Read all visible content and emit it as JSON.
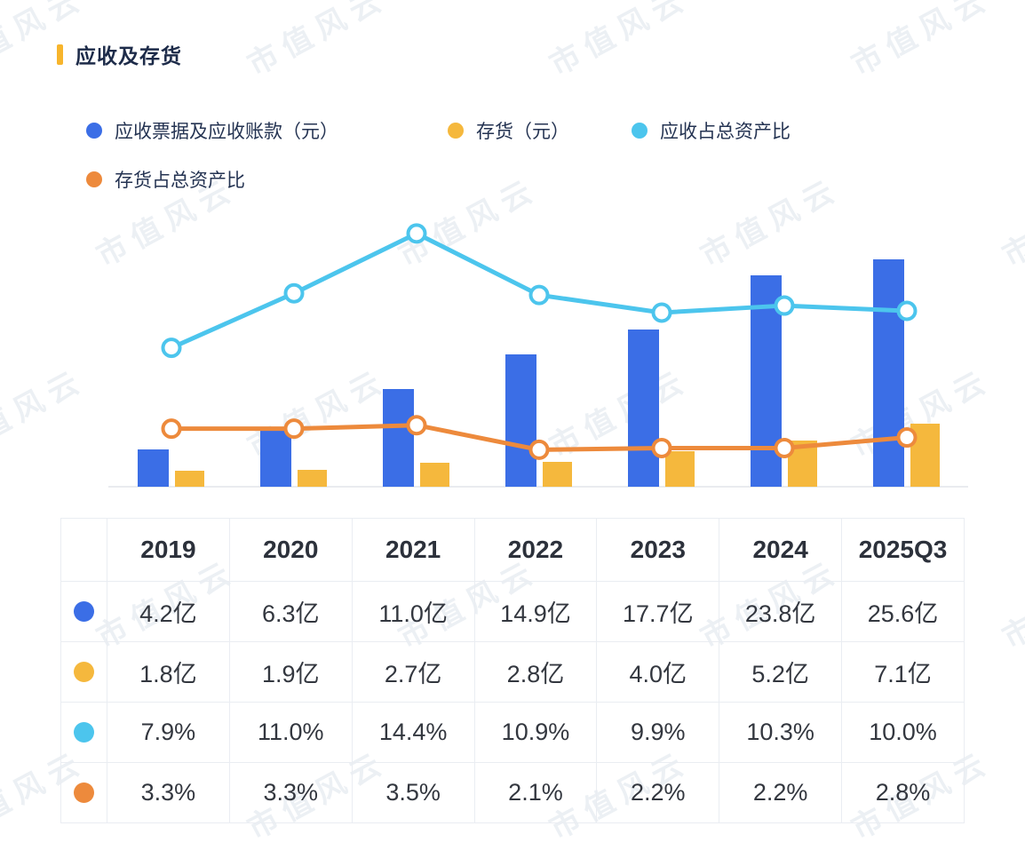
{
  "title": {
    "text": "应收及存货"
  },
  "watermark": {
    "text": "市值风云"
  },
  "colors": {
    "accent_bar": "#F7B52C",
    "receivables_blue": "#3B6EE6",
    "inventory_yellow": "#F5B83D",
    "receivables_ratio_cyan": "#4CC5ED",
    "inventory_ratio_orange": "#ED8A3C",
    "axis_line": "#E9EBEF",
    "table_border": "#EAEDF2"
  },
  "legend": {
    "items": [
      {
        "label": "应收票据及应收账款（元）",
        "color": "#3B6EE6"
      },
      {
        "label": "存货（元）",
        "color": "#F5B83D"
      },
      {
        "label": "应收占总资产比",
        "color": "#4CC5ED"
      },
      {
        "label": "存货占总资产比",
        "color": "#ED8A3C"
      }
    ]
  },
  "chart_data": {
    "type": "bar",
    "subtype": "combo-bar-line",
    "categories": [
      "2019",
      "2020",
      "2021",
      "2022",
      "2023",
      "2024",
      "2025Q3"
    ],
    "series": [
      {
        "name": "应收票据及应收账款（元）",
        "type": "bar",
        "unit": "亿",
        "color": "#3B6EE6",
        "values": [
          4.2,
          6.3,
          11.0,
          14.9,
          17.7,
          23.8,
          25.6
        ]
      },
      {
        "name": "存货（元）",
        "type": "bar",
        "unit": "亿",
        "color": "#F5B83D",
        "values": [
          1.8,
          1.9,
          2.7,
          2.8,
          4.0,
          5.2,
          7.1
        ]
      },
      {
        "name": "应收占总资产比",
        "type": "line",
        "unit": "%",
        "color": "#4CC5ED",
        "values": [
          7.9,
          11.0,
          14.4,
          10.9,
          9.9,
          10.3,
          10.0
        ]
      },
      {
        "name": "存货占总资产比",
        "type": "line",
        "unit": "%",
        "color": "#ED8A3C",
        "values": [
          3.3,
          3.3,
          3.5,
          2.1,
          2.2,
          2.2,
          2.8
        ]
      }
    ],
    "title": "应收及存货",
    "xlabel": "",
    "ylabel": "",
    "bar_axis_range": [
      0,
      26
    ],
    "line_axis_range": [
      0,
      15
    ],
    "grid": false,
    "x_axis_line": true,
    "tick_labels_shown": false,
    "legend_position": "top-left"
  },
  "table": {
    "header": [
      "",
      "2019",
      "2020",
      "2021",
      "2022",
      "2023",
      "2024",
      "2025Q3"
    ],
    "rows": [
      {
        "dot_color": "#3B6EE6",
        "cells": [
          "4.2亿",
          "6.3亿",
          "11.0亿",
          "14.9亿",
          "17.7亿",
          "23.8亿",
          "25.6亿"
        ]
      },
      {
        "dot_color": "#F5B83D",
        "cells": [
          "1.8亿",
          "1.9亿",
          "2.7亿",
          "2.8亿",
          "4.0亿",
          "5.2亿",
          "7.1亿"
        ]
      },
      {
        "dot_color": "#4CC5ED",
        "cells": [
          "7.9%",
          "11.0%",
          "14.4%",
          "10.9%",
          "9.9%",
          "10.3%",
          "10.0%"
        ]
      },
      {
        "dot_color": "#ED8A3C",
        "cells": [
          "3.3%",
          "3.3%",
          "3.5%",
          "2.1%",
          "2.2%",
          "2.2%",
          "2.8%"
        ]
      }
    ]
  }
}
